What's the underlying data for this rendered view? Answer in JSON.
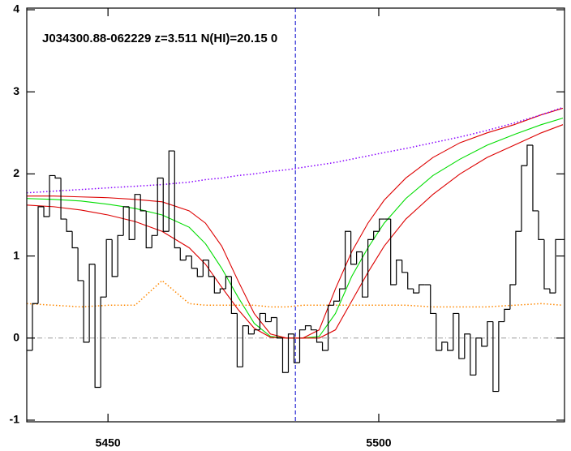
{
  "chart_data": {
    "type": "spectrum",
    "title": "J034300.88-062229 z=3.511 N(HI)=20.15 0",
    "xlim": [
      5435,
      5534.3
    ],
    "ylim": [
      -1.02,
      4.02
    ],
    "xticks": [
      5450,
      5500
    ],
    "yticks": [
      -1,
      0,
      1,
      2,
      3,
      4
    ],
    "flux": {
      "color": "#000000",
      "x": [
        5435,
        5436.05,
        5437.1,
        5438.15,
        5439.2,
        5440.25,
        5441.3,
        5442.35,
        5443.4,
        5444.45,
        5445.5,
        5446.55,
        5447.6,
        5448.65,
        5449.7,
        5450.75,
        5451.8,
        5452.85,
        5453.9,
        5454.95,
        5456,
        5457.05,
        5458.1,
        5459.15,
        5460.2,
        5461.25,
        5462.3,
        5463.35,
        5464.4,
        5465.45,
        5466.5,
        5467.55,
        5468.6,
        5469.65,
        5470.7,
        5471.75,
        5472.8,
        5473.85,
        5474.9,
        5475.95,
        5477,
        5478.05,
        5479.1,
        5480.15,
        5481.2,
        5482.25,
        5483.3,
        5484.35,
        5485.4,
        5486.45,
        5487.5,
        5488.55,
        5489.6,
        5490.65,
        5491.7,
        5492.75,
        5493.8,
        5494.85,
        5495.9,
        5496.95,
        5498,
        5499.05,
        5500.1,
        5501.15,
        5502.2,
        5503.25,
        5504.3,
        5505.35,
        5506.4,
        5507.45,
        5508.5,
        5509.55,
        5510.6,
        5511.65,
        5512.7,
        5513.75,
        5514.8,
        5515.85,
        5516.9,
        5517.95,
        5519,
        5520.05,
        5521.1,
        5522.15,
        5523.2,
        5524.25,
        5525.3,
        5526.35,
        5527.4,
        5528.45,
        5529.5,
        5530.55,
        5531.6,
        5532.65,
        5533.7
      ],
      "values": [
        -0.15,
        0.42,
        1.6,
        1.48,
        1.98,
        1.95,
        1.45,
        1.3,
        1.1,
        0.7,
        -0.05,
        0.9,
        -0.6,
        0.5,
        1.2,
        0.75,
        1.25,
        1.6,
        1.2,
        1.75,
        1.55,
        1.1,
        1.25,
        1.95,
        1.3,
        2.28,
        1.1,
        0.95,
        1.0,
        0.85,
        0.75,
        0.95,
        0.75,
        0.55,
        0.6,
        0.75,
        0.3,
        -0.35,
        0.15,
        0.05,
        0.1,
        0.3,
        0.2,
        0.25,
        0.0,
        -0.42,
        0.05,
        -0.3,
        0.1,
        0.15,
        0.1,
        -0.05,
        -0.15,
        0.4,
        0.45,
        0.6,
        1.3,
        0.9,
        1.05,
        0.5,
        1.2,
        1.3,
        1.45,
        1.45,
        0.65,
        0.95,
        0.8,
        0.6,
        0.55,
        0.65,
        0.65,
        0.3,
        -0.15,
        -0.05,
        -0.15,
        0.3,
        -0.25,
        0.05,
        -0.45,
        0.0,
        -0.1,
        0.2,
        -0.65,
        0.2,
        0.35,
        0.65,
        1.3,
        2.1,
        2.35,
        1.55,
        1.2,
        0.6,
        0.55,
        1.2,
        1.2
      ]
    },
    "model_x": [
      5435,
      5440,
      5445,
      5450,
      5455,
      5460,
      5465,
      5468,
      5471,
      5474,
      5477,
      5480,
      5483,
      5486,
      5489,
      5492,
      5495,
      5498,
      5501,
      5505,
      5510,
      5515,
      5520,
      5525,
      5530,
      5534
    ],
    "curves": [
      {
        "color": "#00dd00",
        "style": "solid",
        "values": [
          1.7,
          1.69,
          1.67,
          1.63,
          1.58,
          1.5,
          1.35,
          1.15,
          0.85,
          0.5,
          0.18,
          0.02,
          0,
          0,
          0.02,
          0.3,
          0.75,
          1.1,
          1.4,
          1.7,
          1.98,
          2.18,
          2.35,
          2.48,
          2.6,
          2.68
        ]
      },
      {
        "color": "#dd0000",
        "style": "solid",
        "values": [
          1.73,
          1.73,
          1.72,
          1.71,
          1.69,
          1.66,
          1.55,
          1.4,
          1.12,
          0.7,
          0.3,
          0.05,
          0,
          0,
          0.1,
          0.6,
          1.05,
          1.4,
          1.68,
          1.95,
          2.2,
          2.38,
          2.5,
          2.6,
          2.72,
          2.8
        ]
      },
      {
        "color": "#dd0000",
        "style": "solid",
        "values": [
          1.62,
          1.6,
          1.56,
          1.5,
          1.42,
          1.3,
          1.1,
          0.9,
          0.62,
          0.35,
          0.12,
          0.01,
          0,
          0,
          0.0,
          0.1,
          0.45,
          0.8,
          1.12,
          1.45,
          1.75,
          2.0,
          2.2,
          2.35,
          2.5,
          2.6
        ]
      },
      {
        "color": "#8800ff",
        "style": "dotted",
        "values": [
          1.77,
          1.79,
          1.81,
          1.83,
          1.85,
          1.87,
          1.9,
          1.93,
          1.95,
          1.98,
          2.0,
          2.03,
          2.05,
          2.08,
          2.11,
          2.14,
          2.18,
          2.22,
          2.26,
          2.31,
          2.38,
          2.45,
          2.53,
          2.62,
          2.72,
          2.81
        ]
      },
      {
        "color": "#ff8800",
        "style": "dotted",
        "values": [
          0.42,
          0.4,
          0.38,
          0.4,
          0.4,
          0.7,
          0.42,
          0.4,
          0.4,
          0.4,
          0.4,
          0.38,
          0.38,
          0.4,
          0.4,
          0.4,
          0.4,
          0.4,
          0.4,
          0.4,
          0.38,
          0.38,
          0.38,
          0.4,
          0.42,
          0.4
        ]
      }
    ],
    "zero_line": {
      "value": 0,
      "color": "#999999"
    },
    "line_center": {
      "value": 5484.6,
      "color": "#0000cc"
    }
  }
}
